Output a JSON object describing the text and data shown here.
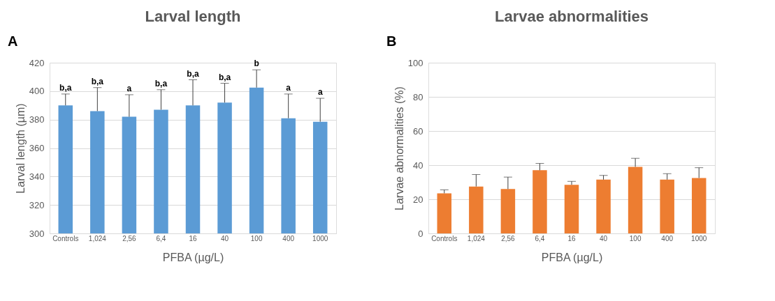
{
  "chart_data": [
    {
      "type": "bar",
      "title": "Larval length",
      "xlabel": "PFBA (µg/L)",
      "ylabel": "Larval length (µm)",
      "categories": [
        "Controls",
        "1,024",
        "2,56",
        "6,4",
        "16",
        "40",
        "100",
        "400",
        "1000"
      ],
      "series": [
        {
          "color": "#5b9bd5",
          "values": [
            390,
            386,
            382,
            387,
            390,
            392,
            402.5,
            381,
            378.5
          ],
          "errors": [
            [
              390,
              398
            ],
            [
              386,
              402.5
            ],
            [
              382,
              397.5
            ],
            [
              387,
              401
            ],
            [
              390,
              408
            ],
            [
              392,
              405.5
            ],
            [
              402.5,
              415
            ],
            [
              381,
              398
            ],
            [
              378.5,
              395
            ]
          ]
        }
      ],
      "ylim": [
        300,
        420
      ],
      "yticks": [
        300,
        320,
        340,
        360,
        380,
        400,
        420
      ],
      "grid": "y",
      "annotations": [
        "A",
        "b,a",
        "b,a",
        "a",
        "b,a",
        "b,a",
        "b,a",
        "b",
        "a",
        "a"
      ]
    },
    {
      "type": "bar",
      "title": "Larvae abnormalities",
      "xlabel": "PFBA (µg/L)",
      "ylabel": "Larvae abnormalities (%)",
      "categories": [
        "Controls",
        "1,024",
        "2,56",
        "6,4",
        "16",
        "40",
        "100",
        "400",
        "1000"
      ],
      "series": [
        {
          "color": "#ed7d31",
          "values": [
            23.5,
            27.5,
            26,
            37,
            28.5,
            31.5,
            39,
            31.5,
            32.5
          ],
          "errors": [
            [
              23.5,
              25.5
            ],
            [
              27.5,
              34.5
            ],
            [
              26,
              33
            ],
            [
              37,
              41
            ],
            [
              28.5,
              30.5
            ],
            [
              31.5,
              34
            ],
            [
              39,
              44
            ],
            [
              31.5,
              35
            ],
            [
              32.5,
              38.5
            ]
          ]
        }
      ],
      "ylim": [
        0,
        100
      ],
      "yticks": [
        0,
        20,
        40,
        60,
        80,
        100
      ],
      "grid": "y",
      "annotations": [
        "B"
      ]
    }
  ]
}
